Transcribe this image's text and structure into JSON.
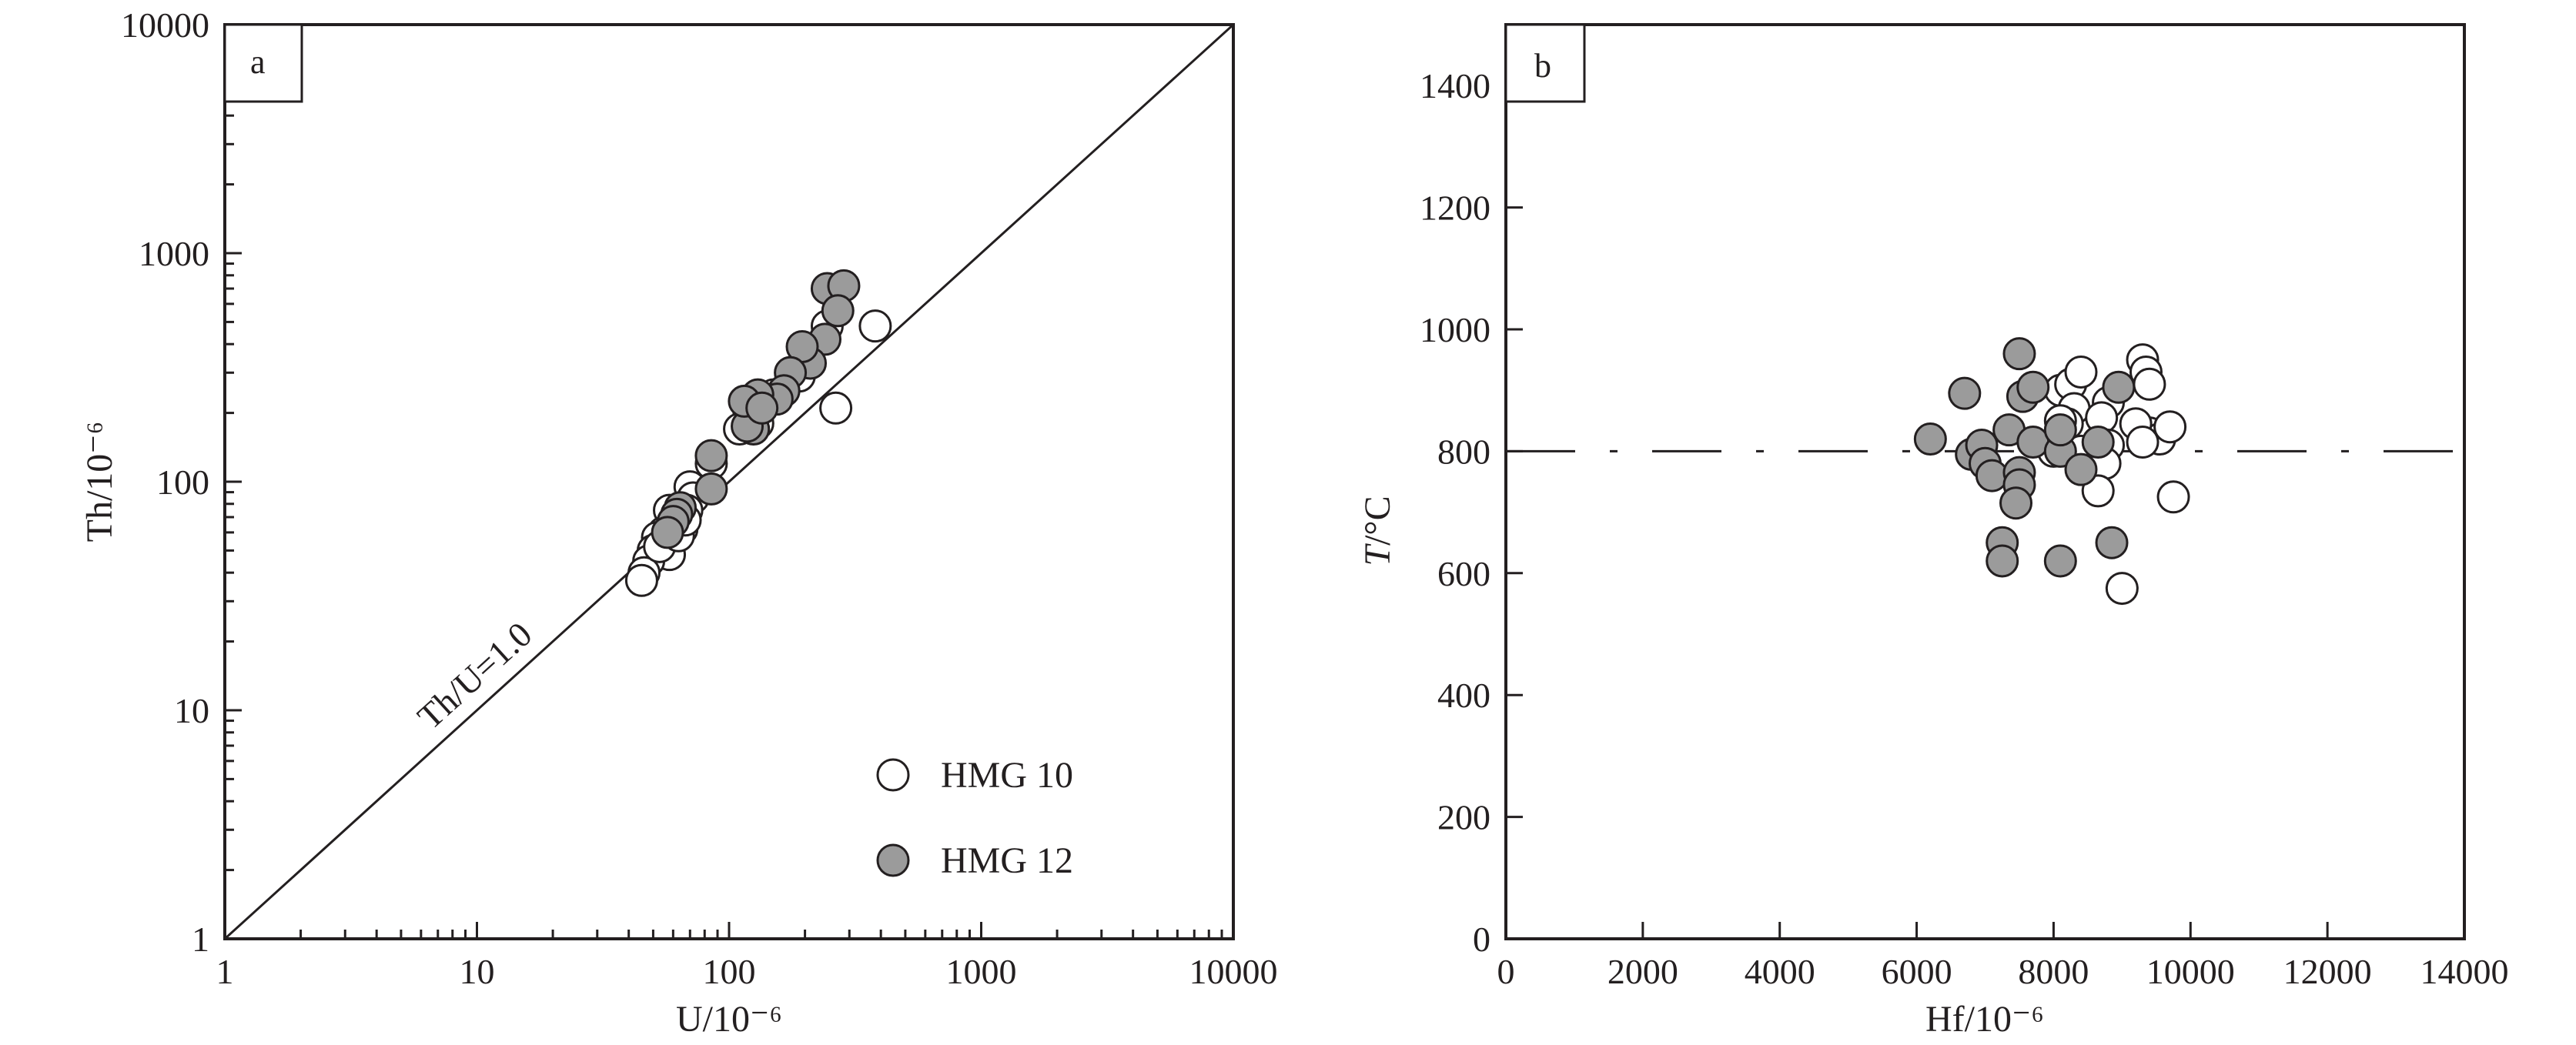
{
  "chart_data": [
    {
      "panel": "a",
      "type": "scatter",
      "xscale": "log",
      "yscale": "log",
      "xlim": [
        1,
        10000
      ],
      "ylim": [
        1,
        10000
      ],
      "xlabel": "U/10⁻⁶",
      "ylabel": "Th/10⁻⁶",
      "xticks": [
        1,
        10,
        100,
        1000,
        10000
      ],
      "yticks": [
        1,
        10,
        100,
        1000,
        10000
      ],
      "xtick_labels": [
        "1",
        "10",
        "100",
        "1000",
        "10000"
      ],
      "ytick_labels": [
        "1",
        "10",
        "100",
        "1000",
        "10000"
      ],
      "reference_line": {
        "label": "Th/U=1.0",
        "ratio": 1.0
      },
      "legend": {
        "placement": "bottom-right",
        "entries": [
          "HMG 10",
          "HMG 12"
        ]
      },
      "series": [
        {
          "name": "HMG 10",
          "marker": "open-circle",
          "color": "#ffffff",
          "points": [
            [
              380,
              480
            ],
            [
              265,
              210
            ],
            [
              245,
              480
            ],
            [
              200,
              330
            ],
            [
              190,
              290
            ],
            [
              150,
              240
            ],
            [
              130,
              180
            ],
            [
              120,
              200
            ],
            [
              110,
              170
            ],
            [
              85,
              120
            ],
            [
              70,
              95
            ],
            [
              72,
              85
            ],
            [
              68,
              75
            ],
            [
              65,
              62
            ],
            [
              62,
              70
            ],
            [
              58,
              75
            ],
            [
              60,
              65
            ],
            [
              57,
              55
            ],
            [
              55,
              60
            ],
            [
              52,
              57
            ],
            [
              50,
              50
            ],
            [
              58,
              48
            ],
            [
              48,
              45
            ],
            [
              46,
              40
            ],
            [
              45,
              37
            ],
            [
              53,
              52
            ],
            [
              63,
              58
            ],
            [
              67,
              68
            ]
          ]
        },
        {
          "name": "HMG 12",
          "marker": "filled-circle",
          "color": "#9b9b9b",
          "points": [
            [
              245,
              700
            ],
            [
              285,
              720
            ],
            [
              270,
              560
            ],
            [
              240,
              420
            ],
            [
              210,
              330
            ],
            [
              195,
              390
            ],
            [
              175,
              300
            ],
            [
              165,
              250
            ],
            [
              155,
              230
            ],
            [
              130,
              240
            ],
            [
              125,
              170
            ],
            [
              118,
              175
            ],
            [
              115,
              225
            ],
            [
              135,
              210
            ],
            [
              85,
              130
            ],
            [
              85,
              93
            ],
            [
              64,
              77
            ],
            [
              62,
              72
            ],
            [
              60,
              67
            ],
            [
              57,
              60
            ]
          ]
        }
      ]
    },
    {
      "panel": "b",
      "type": "scatter",
      "xlim": [
        0,
        14000
      ],
      "ylim": [
        0,
        1500
      ],
      "xlabel": "Hf/10⁻⁶",
      "ylabel": "T/°C",
      "xticks": [
        0,
        2000,
        4000,
        6000,
        8000,
        10000,
        12000,
        14000
      ],
      "yticks": [
        0,
        200,
        400,
        600,
        800,
        1000,
        1200,
        1400
      ],
      "xtick_labels": [
        "0",
        "2000",
        "4000",
        "6000",
        "8000",
        "10000",
        "12000",
        "14000"
      ],
      "ytick_labels": [
        "0",
        "200",
        "400",
        "600",
        "800",
        "1000",
        "1200",
        "1400"
      ],
      "reference_line": {
        "type": "horizontal-dashed",
        "y": 800
      },
      "series": [
        {
          "name": "HMG 10",
          "marker": "open-circle",
          "color": "#ffffff",
          "points": [
            [
              8100,
              900
            ],
            [
              8250,
              910
            ],
            [
              8400,
              930
            ],
            [
              9300,
              950
            ],
            [
              9350,
              930
            ],
            [
              9400,
              910
            ],
            [
              8800,
              880
            ],
            [
              8300,
              870
            ],
            [
              8200,
              845
            ],
            [
              8700,
              855
            ],
            [
              9400,
              830
            ],
            [
              9550,
              820
            ],
            [
              9700,
              840
            ],
            [
              9200,
              845
            ],
            [
              9300,
              815
            ],
            [
              8800,
              810
            ],
            [
              8400,
              800
            ],
            [
              8000,
              800
            ],
            [
              8750,
              780
            ],
            [
              8650,
              735
            ],
            [
              9750,
              725
            ],
            [
              9000,
              575
            ],
            [
              8100,
              850
            ]
          ]
        },
        {
          "name": "HMG 12",
          "marker": "filled-circle",
          "color": "#9b9b9b",
          "points": [
            [
              6200,
              820
            ],
            [
              6700,
              895
            ],
            [
              7500,
              960
            ],
            [
              7550,
              890
            ],
            [
              7700,
              905
            ],
            [
              6800,
              795
            ],
            [
              6950,
              810
            ],
            [
              7000,
              780
            ],
            [
              7100,
              760
            ],
            [
              7350,
              835
            ],
            [
              7700,
              815
            ],
            [
              8100,
              800
            ],
            [
              8400,
              770
            ],
            [
              8650,
              815
            ],
            [
              8950,
              905
            ],
            [
              7500,
              765
            ],
            [
              7500,
              745
            ],
            [
              7450,
              715
            ],
            [
              7250,
              650
            ],
            [
              7250,
              620
            ],
            [
              8100,
              620
            ],
            [
              8850,
              650
            ],
            [
              8100,
              835
            ]
          ]
        }
      ]
    }
  ]
}
